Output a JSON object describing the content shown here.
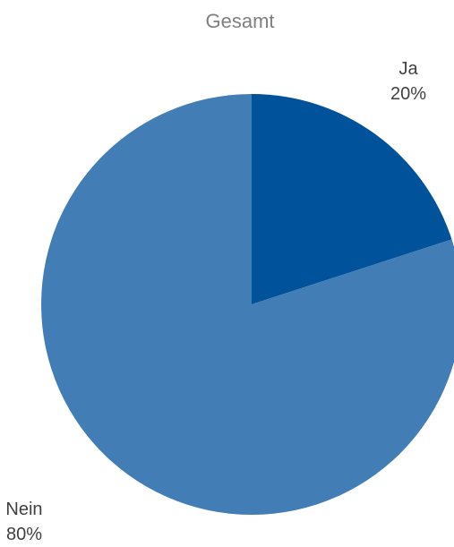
{
  "chart_data": {
    "type": "pie",
    "title": "Gesamt",
    "slices": [
      {
        "label": "Ja",
        "value": 20,
        "value_label": "20%",
        "color": "#00529B"
      },
      {
        "label": "Nein",
        "value": 80,
        "value_label": "80%",
        "color": "#427DB6"
      }
    ],
    "start_angle": "12 o'clock",
    "direction": "clockwise",
    "legend": "none"
  }
}
